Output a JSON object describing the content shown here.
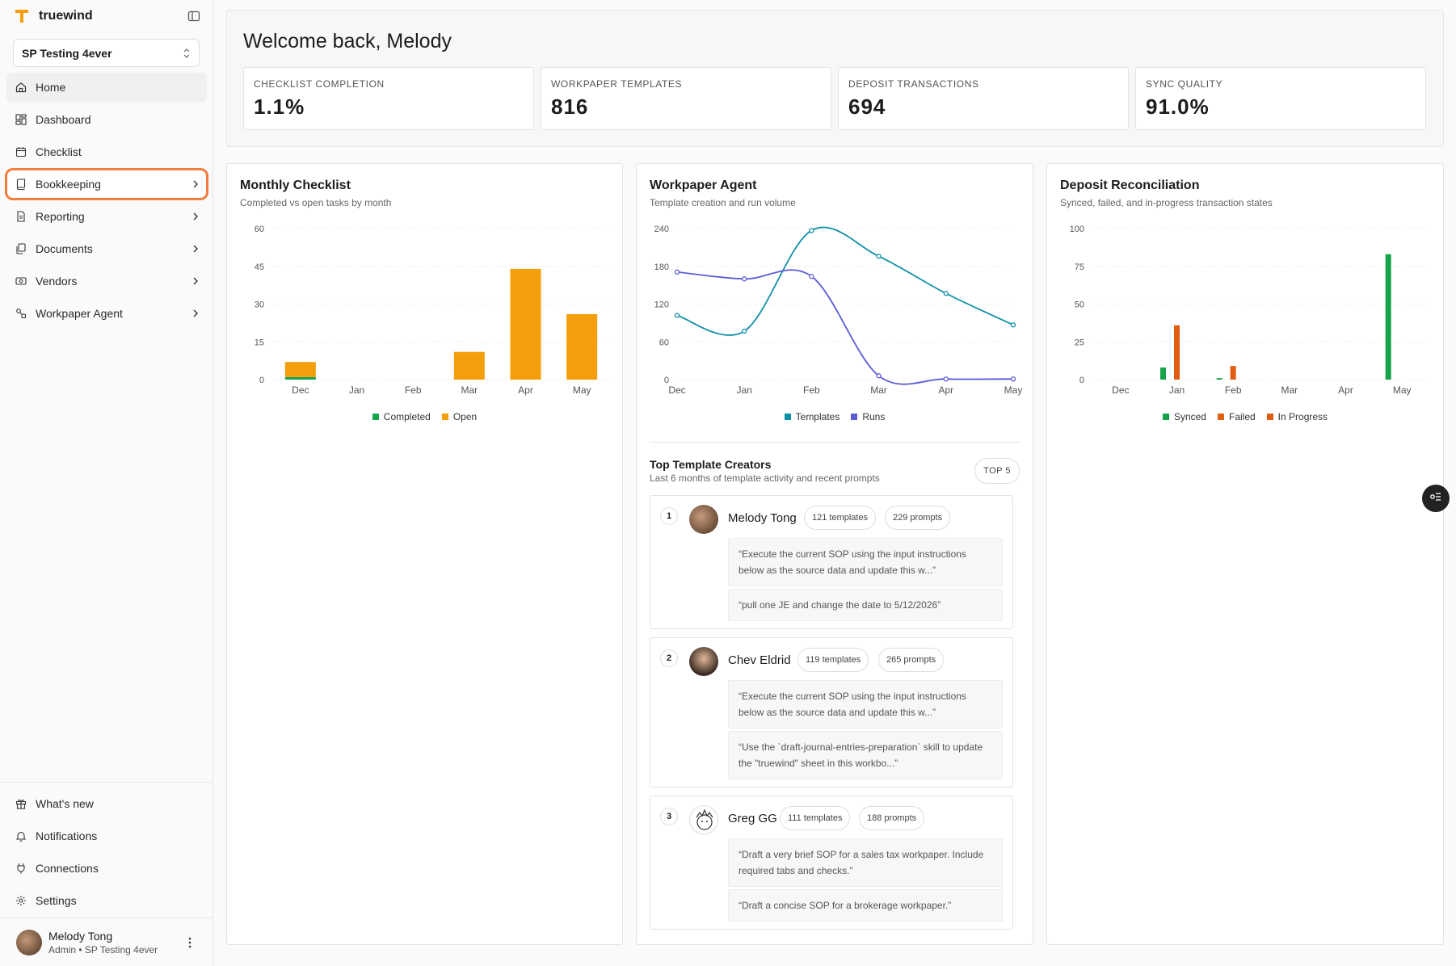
{
  "app": {
    "brand": "truewind"
  },
  "sidebar": {
    "org": "SP Testing 4ever",
    "nav": [
      {
        "label": "Home",
        "icon": "home-icon"
      },
      {
        "label": "Dashboard",
        "icon": "dashboard-icon"
      },
      {
        "label": "Checklist",
        "icon": "calendar-icon"
      },
      {
        "label": "Bookkeeping",
        "icon": "book-icon"
      },
      {
        "label": "Reporting",
        "icon": "report-icon"
      },
      {
        "label": "Documents",
        "icon": "documents-icon"
      },
      {
        "label": "Vendors",
        "icon": "vendor-icon"
      },
      {
        "label": "Workpaper Agent",
        "icon": "agent-icon"
      }
    ],
    "footer": [
      {
        "label": "What's new",
        "icon": "gift-icon"
      },
      {
        "label": "Notifications",
        "icon": "bell-icon"
      },
      {
        "label": "Connections",
        "icon": "plug-icon"
      },
      {
        "label": "Settings",
        "icon": "gear-icon"
      }
    ],
    "user": {
      "name": "Melody Tong",
      "role": "Admin • SP Testing 4ever"
    }
  },
  "welcome": {
    "title": "Welcome back, Melody"
  },
  "kpis": [
    {
      "label": "CHECKLIST COMPLETION",
      "value": "1.1%"
    },
    {
      "label": "WORKPAPER TEMPLATES",
      "value": "816"
    },
    {
      "label": "DEPOSIT TRANSACTIONS",
      "value": "694"
    },
    {
      "label": "SYNC QUALITY",
      "value": "91.0%"
    }
  ],
  "cards": {
    "checklist": {
      "title": "Monthly Checklist",
      "subtitle": "Completed vs open tasks by month"
    },
    "agent": {
      "title": "Workpaper Agent",
      "subtitle": "Template creation and run volume"
    },
    "deposit": {
      "title": "Deposit Reconciliation",
      "subtitle": "Synced, failed, and in-progress transaction states"
    }
  },
  "colors": {
    "completed": "#16a34a",
    "open": "#f59e0b",
    "templates": "#0e8fa8",
    "runs": "#5b5bd6",
    "synced": "#16a34a",
    "failed": "#e05d12",
    "inprogress": "#e05d12"
  },
  "chart_data": [
    {
      "type": "bar",
      "title": "Monthly Checklist",
      "categories": [
        "Dec",
        "Jan",
        "Feb",
        "Mar",
        "Apr",
        "May"
      ],
      "ylim": [
        0,
        60
      ],
      "yticks": [
        0,
        15,
        30,
        45,
        60
      ],
      "stacked": true,
      "series": [
        {
          "name": "Completed",
          "values": [
            1,
            0,
            0,
            0,
            0,
            0
          ]
        },
        {
          "name": "Open",
          "values": [
            6,
            0,
            0,
            11,
            44,
            26
          ]
        }
      ]
    },
    {
      "type": "line",
      "title": "Workpaper Agent",
      "categories": [
        "Dec",
        "Jan",
        "Feb",
        "Mar",
        "Apr",
        "May"
      ],
      "ylim": [
        0,
        240
      ],
      "yticks": [
        0,
        60,
        120,
        180,
        240
      ],
      "series": [
        {
          "name": "Templates",
          "values": [
            102,
            77,
            237,
            196,
            137,
            87
          ]
        },
        {
          "name": "Runs",
          "values": [
            171,
            160,
            164,
            6,
            1,
            1
          ]
        }
      ]
    },
    {
      "type": "bar",
      "title": "Deposit Reconciliation",
      "categories": [
        "Dec",
        "Jan",
        "Feb",
        "Mar",
        "Apr",
        "May"
      ],
      "ylim": [
        0,
        100
      ],
      "yticks": [
        0,
        25,
        50,
        75,
        100
      ],
      "series": [
        {
          "name": "Synced",
          "values": [
            0,
            8,
            1,
            0,
            0,
            83
          ]
        },
        {
          "name": "Failed",
          "values": [
            0,
            36,
            9,
            0,
            0,
            0
          ]
        },
        {
          "name": "In Progress",
          "values": [
            0,
            0,
            0,
            0,
            0,
            0
          ]
        }
      ]
    }
  ],
  "creators": {
    "title": "Top Template Creators",
    "subtitle": "Last 6 months of template activity and recent prompts",
    "badge": "TOP 5",
    "items": [
      {
        "rank": "1",
        "name": "Melody Tong",
        "templates": "121 templates",
        "prompts": "229 prompts",
        "recent": [
          "“Execute the current SOP using the input instructions below as the source data and update this w...”",
          "“pull one JE and change the date to 5/12/2026”"
        ]
      },
      {
        "rank": "2",
        "name": "Chev Eldrid",
        "templates": "119 templates",
        "prompts": "265 prompts",
        "recent": [
          "“Execute the current SOP using the input instructions below as the source data and update this w...”",
          "“Use the `draft-journal-entries-preparation` skill to update the \"truewind\" sheet in this workbo...”"
        ]
      },
      {
        "rank": "3",
        "name": "Greg GG",
        "templates": "111 templates",
        "prompts": "188 prompts",
        "recent": [
          "“Draft a very brief SOP for a sales tax workpaper. Include required tabs and checks.”",
          "“Draft a concise SOP for a brokerage workpaper.”"
        ]
      }
    ]
  }
}
